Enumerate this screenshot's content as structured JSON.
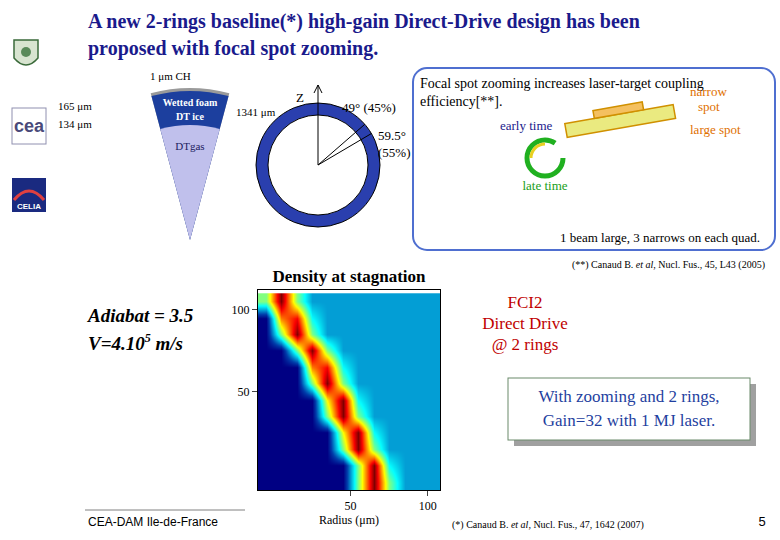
{
  "header": {
    "title": [
      "A new 2-rings baseline(*) high-gain Direct-Drive design has been",
      "proposed with focal spot zooming."
    ]
  },
  "logos": [
    "cea",
    "CELIA"
  ],
  "target": {
    "ch": "1 μm CH",
    "r_outer": "165 μm",
    "r_inner": "134 μm",
    "foam": "Wetted foam",
    "ice": "DT ice",
    "gas": "DTgas",
    "radius": "1341 μm"
  },
  "beams": {
    "axis": "Z",
    "ring1": "49° (45%)",
    "ring2": "59.5°",
    "ring2_share": "(55%)",
    "angles": [
      49,
      59.5
    ]
  },
  "zoom_box": {
    "text": [
      "Focal spot zooming increases laser-target coupling",
      "efficiency[**]."
    ],
    "narrow": [
      "narrow",
      "spot"
    ],
    "large": "large spot",
    "early": "early time",
    "late": "late time",
    "caption": "1 beam large, 3 narrows on each quad."
  },
  "ref_zoom": {
    "before": "(**) Canaud B. ",
    "italic": "et al",
    "after": ", Nucl. Fus., 45, L43 (2005)"
  },
  "conditions": {
    "adiabat": "Adiabat = 3.5",
    "velocity": {
      "text": "V=4.10",
      "sup": "5",
      "unit": " m/s"
    }
  },
  "chart_data": {
    "type": "heatmap",
    "title": "Density at stagnation",
    "xlabel": "Radius (μm)",
    "x": [
      -5,
      5,
      15,
      25,
      35,
      45,
      55,
      65,
      75,
      85,
      95,
      105
    ],
    "y": [
      -5,
      5,
      15,
      25,
      35,
      45,
      55,
      65,
      75,
      85,
      95,
      105
    ],
    "z": [
      [
        1,
        1,
        1,
        1,
        1,
        1,
        5,
        9,
        5,
        3,
        3,
        3
      ],
      [
        1,
        1,
        1,
        1,
        1,
        1,
        5,
        9,
        4,
        3,
        3,
        3
      ],
      [
        1,
        1,
        1,
        1,
        1,
        5,
        9,
        5,
        3,
        3,
        3,
        3
      ],
      [
        1,
        1,
        1,
        1,
        1,
        6,
        9,
        4,
        3,
        3,
        3,
        3
      ],
      [
        1,
        1,
        1,
        1,
        5,
        9,
        5,
        3,
        3,
        3,
        3,
        3
      ],
      [
        1,
        1,
        1,
        1,
        6,
        9,
        4,
        3,
        3,
        3,
        3,
        3
      ],
      [
        1,
        1,
        1,
        5,
        9,
        5,
        3,
        3,
        3,
        3,
        3,
        3
      ],
      [
        1,
        1,
        1,
        7,
        8,
        4,
        3,
        3,
        3,
        3,
        3,
        3
      ],
      [
        1,
        1,
        5,
        9,
        5,
        3,
        3,
        3,
        3,
        3,
        3,
        3
      ],
      [
        1,
        5,
        9,
        5,
        3,
        3,
        3,
        3,
        3,
        3,
        3,
        3
      ],
      [
        1,
        7,
        8,
        4,
        3,
        3,
        3,
        3,
        3,
        3,
        3,
        3
      ],
      [
        5,
        9,
        5,
        3,
        3,
        3,
        3,
        3,
        3,
        3,
        3,
        3
      ]
    ],
    "xlim": [
      -10,
      108
    ],
    "ylim": [
      -10,
      112
    ],
    "xticks": [
      50,
      100
    ],
    "yticks": [
      50,
      100
    ]
  },
  "run_label": [
    "FCI2",
    "Direct Drive",
    "@ 2 rings"
  ],
  "result": [
    "With zooming and 2 rings,",
    "Gain=32 with 1 MJ laser."
  ],
  "footer": {
    "left": "CEA-DAM Ile-de-France",
    "ref": {
      "before": "(*) Canaud B. ",
      "italic": "et al",
      "after": ", Nucl. Fus., 47, 1642 (2007)"
    },
    "page": "5"
  }
}
